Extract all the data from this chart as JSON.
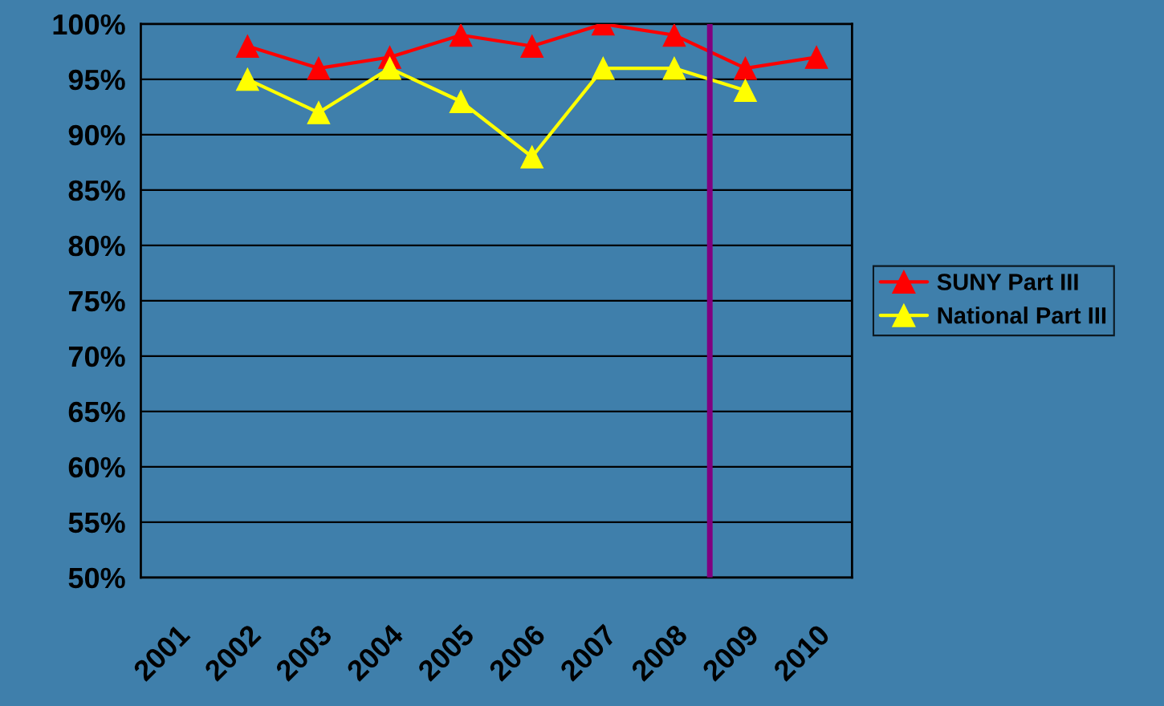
{
  "chart_data": {
    "type": "line",
    "categories": [
      "2001",
      "2002",
      "2003",
      "2004",
      "2005",
      "2006",
      "2007",
      "2008",
      "2009",
      "2010"
    ],
    "series": [
      {
        "name": "SUNY Part III",
        "color": "#ff0000",
        "values": [
          null,
          98,
          96,
          97,
          99,
          98,
          100,
          99,
          96,
          97
        ]
      },
      {
        "name": "National Part III",
        "color": "#ffff00",
        "values": [
          null,
          95,
          92,
          96,
          93,
          88,
          96,
          96,
          94,
          null
        ]
      }
    ],
    "ylim": [
      50,
      100
    ],
    "yticks": [
      {
        "value": 50,
        "label": "50%"
      },
      {
        "value": 55,
        "label": "55%"
      },
      {
        "value": 60,
        "label": "60%"
      },
      {
        "value": 65,
        "label": "65%"
      },
      {
        "value": 70,
        "label": "70%"
      },
      {
        "value": 75,
        "label": "75%"
      },
      {
        "value": 80,
        "label": "80%"
      },
      {
        "value": 85,
        "label": "85%"
      },
      {
        "value": 90,
        "label": "90%"
      },
      {
        "value": 95,
        "label": "95%"
      },
      {
        "value": 100,
        "label": "100%"
      }
    ],
    "ref_lines": [
      {
        "axis": "x",
        "value": "2009",
        "color": "#800080"
      }
    ],
    "grid": "y",
    "legend": "right",
    "marker": "triangle",
    "line_style": "solid"
  }
}
